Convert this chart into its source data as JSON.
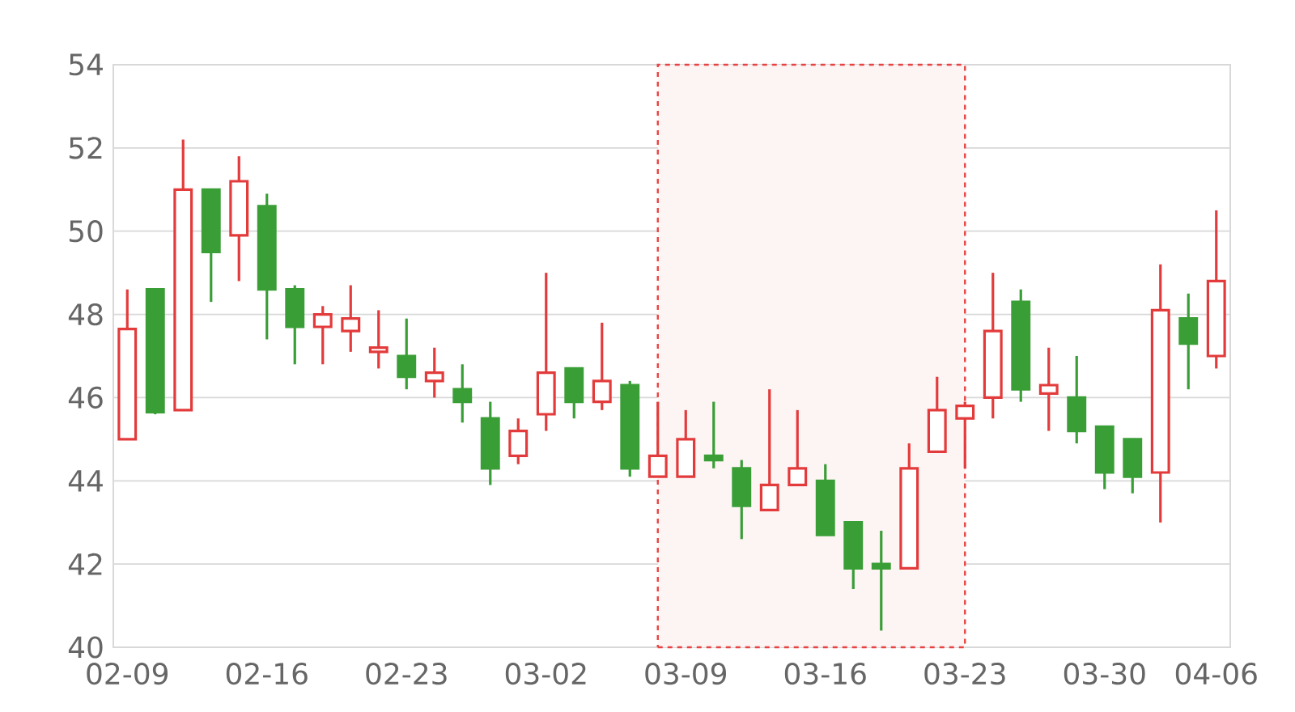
{
  "chart_data": {
    "type": "candlestick",
    "categories": [
      "02-09",
      null,
      null,
      null,
      null,
      "02-16",
      null,
      null,
      null,
      null,
      "02-23",
      null,
      null,
      null,
      null,
      "03-02",
      null,
      null,
      null,
      null,
      "03-09",
      null,
      null,
      null,
      null,
      "03-16",
      null,
      null,
      null,
      null,
      "03-23",
      null,
      null,
      null,
      null,
      "03-30",
      null,
      null,
      null,
      "04-06"
    ],
    "ohlc": [
      [
        45.0,
        48.6,
        45.0,
        47.65
      ],
      [
        48.6,
        48.6,
        45.6,
        45.65
      ],
      [
        45.7,
        52.2,
        45.7,
        51.0
      ],
      [
        51.0,
        51.0,
        48.3,
        49.5
      ],
      [
        49.9,
        51.8,
        48.8,
        51.2
      ],
      [
        50.6,
        50.9,
        47.4,
        48.6
      ],
      [
        48.6,
        48.7,
        46.8,
        47.7
      ],
      [
        47.7,
        48.2,
        46.8,
        48.0
      ],
      [
        47.6,
        48.7,
        47.1,
        47.9
      ],
      [
        47.1,
        48.1,
        46.7,
        47.2
      ],
      [
        47.0,
        47.9,
        46.2,
        46.5
      ],
      [
        46.4,
        47.2,
        46.0,
        46.6
      ],
      [
        46.2,
        46.8,
        45.4,
        45.9
      ],
      [
        45.5,
        45.9,
        43.9,
        44.3
      ],
      [
        44.6,
        45.5,
        44.4,
        45.2
      ],
      [
        45.6,
        49.0,
        45.2,
        46.6
      ],
      [
        46.7,
        46.7,
        45.5,
        45.9
      ],
      [
        45.9,
        47.8,
        45.7,
        46.4
      ],
      [
        46.3,
        46.4,
        44.1,
        44.3
      ],
      [
        44.1,
        45.9,
        44.1,
        44.6
      ],
      [
        44.1,
        45.7,
        44.1,
        45.0
      ],
      [
        44.6,
        45.9,
        44.3,
        44.5
      ],
      [
        44.3,
        44.5,
        42.6,
        43.4
      ],
      [
        43.3,
        46.2,
        43.3,
        43.9
      ],
      [
        43.9,
        45.7,
        43.9,
        44.3
      ],
      [
        44.0,
        44.4,
        42.7,
        42.7
      ],
      [
        43.0,
        43.0,
        41.4,
        41.9
      ],
      [
        42.0,
        42.8,
        40.4,
        41.9
      ],
      [
        41.9,
        44.9,
        41.9,
        44.3
      ],
      [
        44.7,
        46.5,
        44.7,
        45.7
      ],
      [
        45.5,
        45.9,
        44.3,
        45.8
      ],
      [
        46.0,
        49.0,
        45.5,
        47.6
      ],
      [
        48.3,
        48.6,
        45.9,
        46.2
      ],
      [
        46.1,
        47.2,
        45.2,
        46.3
      ],
      [
        46.0,
        47.0,
        44.9,
        45.2
      ],
      [
        45.3,
        45.3,
        43.8,
        44.2
      ],
      [
        45.0,
        45.0,
        43.7,
        44.1
      ],
      [
        44.2,
        49.2,
        43.0,
        48.1
      ],
      [
        47.9,
        48.5,
        46.2,
        47.3
      ],
      [
        47.0,
        50.5,
        46.7,
        48.8
      ]
    ],
    "colors": [
      "#e33b3b",
      "#3a9e37",
      "#e33b3b",
      "#3a9e37",
      "#e33b3b",
      "#3a9e37",
      "#3a9e37",
      "#e33b3b",
      "#e33b3b",
      "#e33b3b",
      "#3a9e37",
      "#e33b3b",
      "#3a9e37",
      "#3a9e37",
      "#e33b3b",
      "#e33b3b",
      "#3a9e37",
      "#e33b3b",
      "#3a9e37",
      "#e33b3b",
      "#e33b3b",
      "#3a9e37",
      "#3a9e37",
      "#e33b3b",
      "#e33b3b",
      "#3a9e37",
      "#3a9e37",
      "#3a9e37",
      "#e33b3b",
      "#e33b3b",
      "#e33b3b",
      "#e33b3b",
      "#3a9e37",
      "#e33b3b",
      "#3a9e37",
      "#3a9e37",
      "#3a9e37",
      "#e33b3b",
      "#3a9e37",
      "#e33b3b"
    ],
    "ylim": [
      40,
      54
    ],
    "yticks": [
      40,
      42,
      44,
      46,
      48,
      50,
      52,
      54
    ],
    "grid": "y"
  }
}
